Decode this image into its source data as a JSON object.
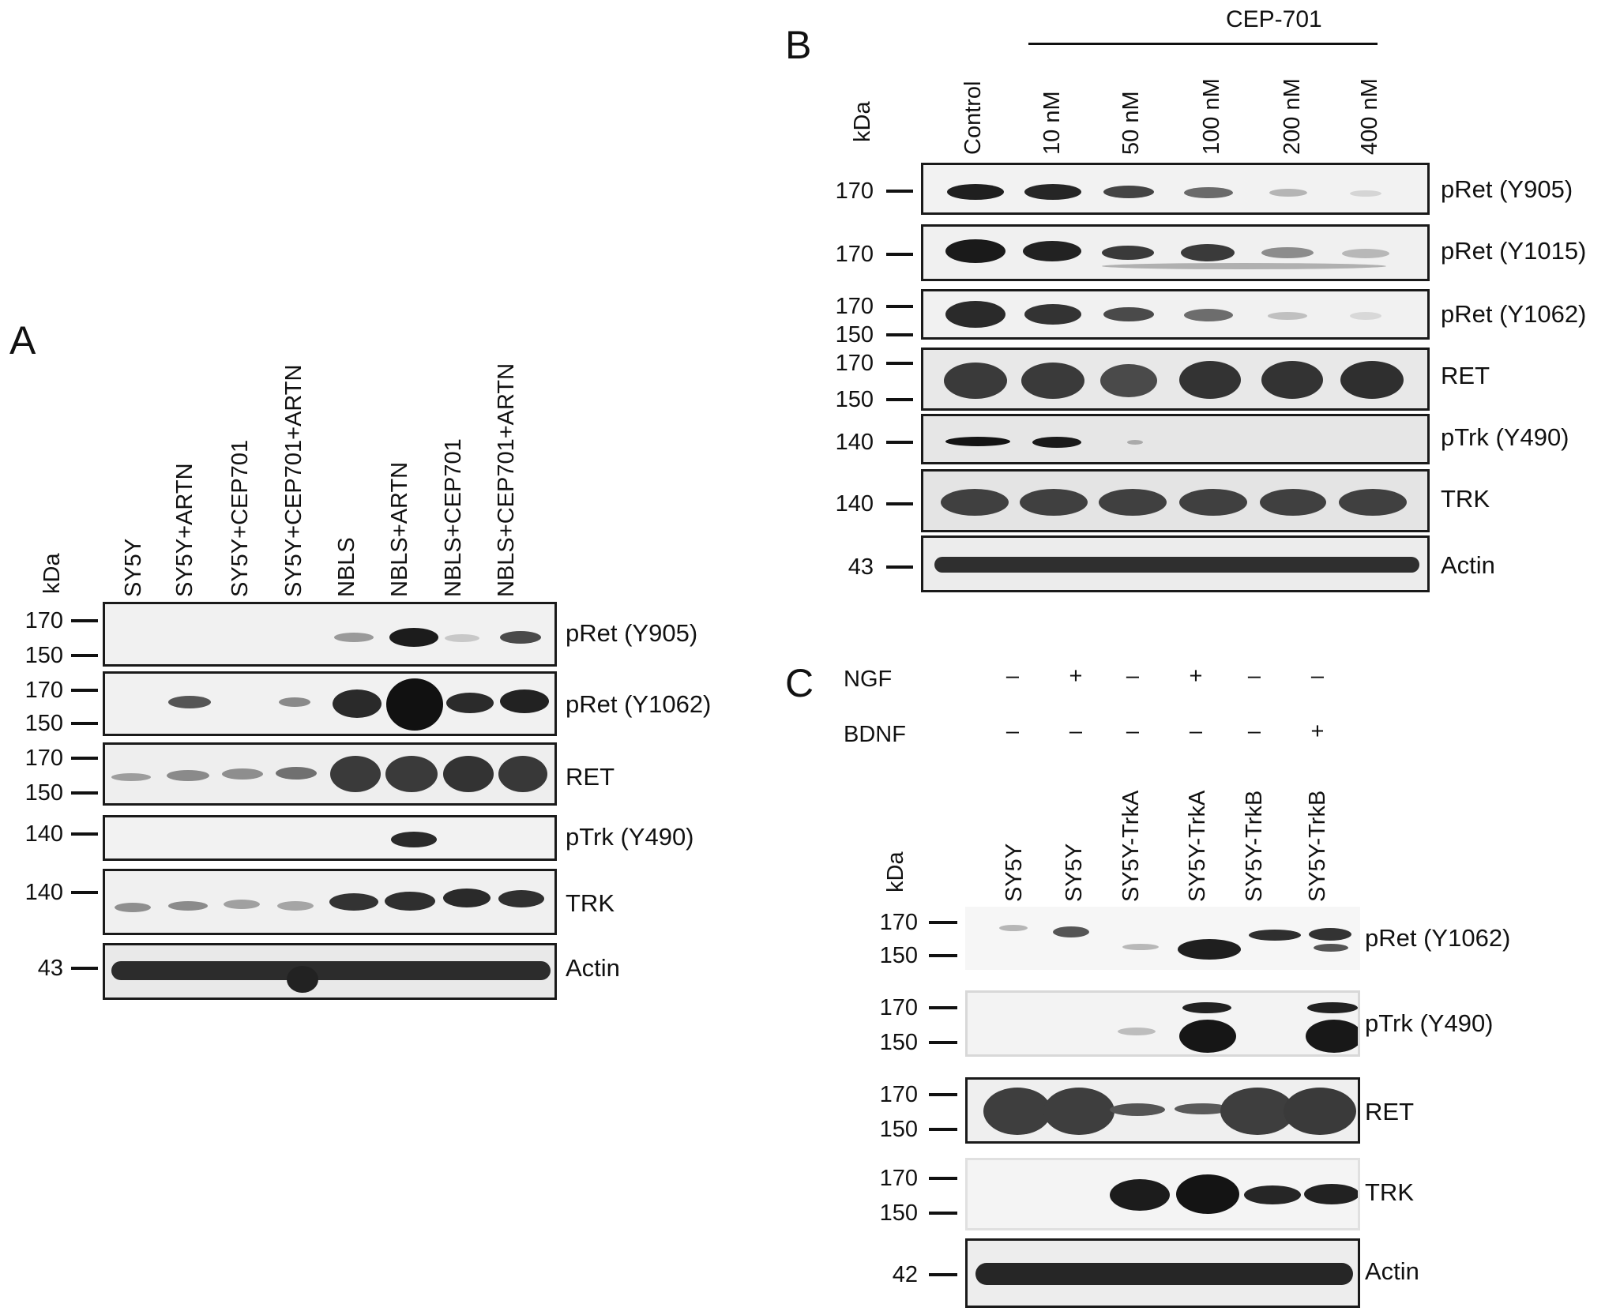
{
  "panels": {
    "A": {
      "letter": "A",
      "kda": "kDa",
      "lanes": [
        "SY5Y",
        "SY5Y+ARTN",
        "SY5Y+CEP701",
        "SY5Y+CEP701+ARTN",
        "NBLS",
        "NBLS+ARTN",
        "NBLS+CEP701",
        "NBLS+CEP701+ARTN"
      ],
      "blots": [
        {
          "label": "pRet (Y905)",
          "markers": [
            "170",
            "150"
          ]
        },
        {
          "label": "pRet (Y1062)",
          "markers": [
            "170",
            "150"
          ]
        },
        {
          "label": "RET",
          "markers": [
            "170",
            "150"
          ]
        },
        {
          "label": "pTrk (Y490)",
          "markers": [
            "140"
          ]
        },
        {
          "label": "TRK",
          "markers": [
            "140"
          ]
        },
        {
          "label": "Actin",
          "markers": [
            "43"
          ]
        }
      ]
    },
    "B": {
      "letter": "B",
      "kda": "kDa",
      "treatment": "CEP-701",
      "lanes": [
        "Control",
        "10 nM",
        "50 nM",
        "100 nM",
        "200 nM",
        "400 nM"
      ],
      "blots": [
        {
          "label": "pRet (Y905)",
          "markers": [
            "170"
          ]
        },
        {
          "label": "pRet (Y1015)",
          "markers": [
            "170"
          ]
        },
        {
          "label": "pRet (Y1062)",
          "markers": [
            "170",
            "150"
          ]
        },
        {
          "label": "RET",
          "markers": [
            "170",
            "150"
          ]
        },
        {
          "label": "pTrk (Y490)",
          "markers": [
            "140"
          ]
        },
        {
          "label": "TRK",
          "markers": [
            "140"
          ]
        },
        {
          "label": "Actin",
          "markers": [
            "43"
          ]
        }
      ]
    },
    "C": {
      "letter": "C",
      "kda": "kDa",
      "treatments": [
        {
          "name": "NGF",
          "values": [
            "–",
            "+",
            "–",
            "+",
            "–",
            "–"
          ]
        },
        {
          "name": "BDNF",
          "values": [
            "–",
            "–",
            "–",
            "–",
            "–",
            "+"
          ]
        }
      ],
      "lanes": [
        "SY5Y",
        "SY5Y",
        "SY5Y-TrkA",
        "SY5Y-TrkA",
        "SY5Y-TrkB",
        "SY5Y-TrkB"
      ],
      "blots": [
        {
          "label": "pRet (Y1062)",
          "markers": [
            "170",
            "150"
          ]
        },
        {
          "label": "pTrk (Y490)",
          "markers": [
            "170",
            "150"
          ]
        },
        {
          "label": "RET",
          "markers": [
            "170",
            "150"
          ]
        },
        {
          "label": "TRK",
          "markers": [
            "170",
            "150"
          ]
        },
        {
          "label": "Actin",
          "markers": [
            "42"
          ]
        }
      ]
    }
  }
}
